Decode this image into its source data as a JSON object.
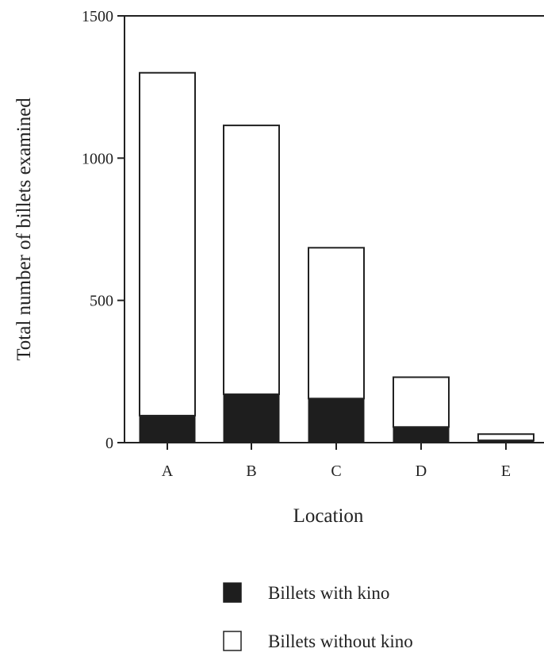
{
  "chart_data": {
    "type": "bar",
    "stacked": true,
    "categories": [
      "A",
      "B",
      "C",
      "D",
      "E"
    ],
    "series": [
      {
        "name": "Billets with kino",
        "values": [
          95,
          170,
          155,
          55,
          8
        ],
        "color": "#1e1e1e"
      },
      {
        "name": "Billets without kino",
        "values": [
          1205,
          945,
          530,
          175,
          22
        ],
        "color": "#ffffff"
      }
    ],
    "title": "",
    "xlabel": "Location",
    "ylabel": "Total number of billets examined",
    "ylim": [
      0,
      1500
    ],
    "yticks": [
      0,
      500,
      1000,
      1500
    ],
    "grid": false,
    "legend_position": "bottom"
  }
}
